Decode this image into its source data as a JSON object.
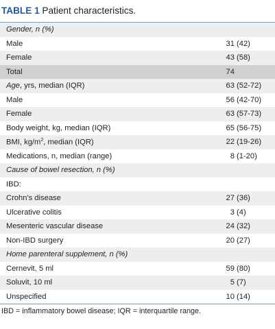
{
  "caption": {
    "label": "TABLE 1",
    "title": "Patient characteristics."
  },
  "rows": [
    {
      "label": "Gender, n (%)",
      "value": "",
      "italic": true
    },
    {
      "label": "Male",
      "value": "31 (42)"
    },
    {
      "label": "Female",
      "value": "43 (58)"
    },
    {
      "label": "Total",
      "value": "74",
      "highlight": true
    },
    {
      "label_italic": "Age",
      "label_rest": ", yrs, median (IQR)",
      "value": "63 (52-72)"
    },
    {
      "label": "Male",
      "value": "56 (42-70)"
    },
    {
      "label": "Female",
      "value": "63 (57-73)"
    },
    {
      "label": "Body weight, kg, median (IQR)",
      "value": "65 (56-75)"
    },
    {
      "label_pre": "BMI, kg/m",
      "label_sup": "2",
      "label_rest": ", median (IQR)",
      "value": "22 (19-26)"
    },
    {
      "label": "Medications, n, median (range)",
      "value": "8 (1-20)"
    },
    {
      "label": "Cause of bowel resection, n (%)",
      "value": "",
      "italic": true
    },
    {
      "label": "IBD:",
      "value": ""
    },
    {
      "label": "Crohn's disease",
      "value": "27 (36)"
    },
    {
      "label": "Ulcerative colitis",
      "value": "3 (4)"
    },
    {
      "label": "Mesenteric vascular disease",
      "value": "24 (32)"
    },
    {
      "label": "Non-IBD surgery",
      "value": "20 (27)"
    },
    {
      "label": "Home parenteral supplement, n (%)",
      "value": "",
      "italic": true
    },
    {
      "label": "Cernevit, 5 ml",
      "value": "59 (80)"
    },
    {
      "label": "Soluvit, 10 ml",
      "value": "5 (7)"
    },
    {
      "label": "Unspecified",
      "value": "10 (14)"
    }
  ],
  "footnote": "IBD = inflammatory bowel disease; IQR = interquartile range."
}
